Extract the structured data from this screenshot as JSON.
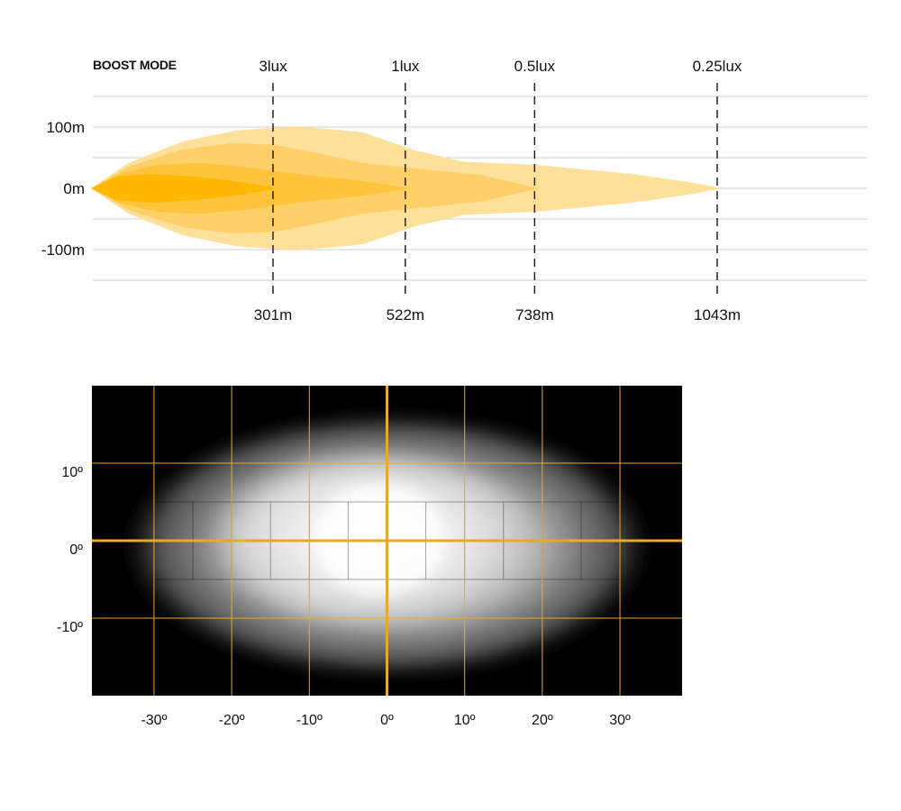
{
  "chart_data": [
    {
      "type": "area",
      "title": "BOOST MODE",
      "xlabel": "",
      "ylabel": "",
      "xlim": [
        0,
        1250
      ],
      "ylim": [
        -150,
        150
      ],
      "y_ticks": [
        "100m",
        "0m",
        "-100m"
      ],
      "y_tick_values": [
        100,
        0,
        -100
      ],
      "grid": true,
      "colors": [
        "#ffe09a",
        "#ffd068",
        "#ffc43c",
        "#ffb800"
      ],
      "series": [
        {
          "lux": "0.25lux",
          "distance_label": "1043m",
          "reach": 1043,
          "outline": [
            [
              0,
              0
            ],
            [
              60,
              40
            ],
            [
              150,
              75
            ],
            [
              240,
              93
            ],
            [
              340,
              100
            ],
            [
              450,
              90
            ],
            [
              540,
              60
            ],
            [
              620,
              42
            ],
            [
              738,
              37
            ],
            [
              900,
              22
            ],
            [
              1000,
              8
            ],
            [
              1043,
              0
            ]
          ]
        },
        {
          "lux": "0.5lux",
          "distance_label": "738m",
          "reach": 738,
          "outline": [
            [
              0,
              0
            ],
            [
              60,
              34
            ],
            [
              150,
              62
            ],
            [
              230,
              72
            ],
            [
              300,
              70
            ],
            [
              380,
              55
            ],
            [
              450,
              40
            ],
            [
              540,
              31
            ],
            [
              650,
              20
            ],
            [
              738,
              0
            ]
          ]
        },
        {
          "lux": "1lux",
          "distance_label": "522m",
          "reach": 522,
          "outline": [
            [
              0,
              0
            ],
            [
              50,
              24
            ],
            [
              110,
              37
            ],
            [
              180,
              40
            ],
            [
              260,
              33
            ],
            [
              340,
              22
            ],
            [
              440,
              12
            ],
            [
              522,
              0
            ]
          ]
        },
        {
          "lux": "3lux",
          "distance_label": "301m",
          "reach": 301,
          "outline": [
            [
              0,
              0
            ],
            [
              40,
              18
            ],
            [
              100,
              22
            ],
            [
              170,
              18
            ],
            [
              240,
              10
            ],
            [
              301,
              0
            ]
          ]
        }
      ]
    },
    {
      "type": "heatmap",
      "x_ticks": [
        "-30º",
        "-20º",
        "-10º",
        "0º",
        "10º",
        "20º",
        "30º"
      ],
      "x_tick_values": [
        -30,
        -20,
        -10,
        0,
        10,
        20,
        30
      ],
      "y_ticks": [
        "10º",
        "0º",
        "-10º"
      ],
      "y_tick_values": [
        10,
        0,
        -10
      ],
      "xlim": [
        -38,
        38
      ],
      "ylim": [
        -20,
        20
      ],
      "grid": true,
      "grid_color": "#e8a928",
      "beam_half_width_deg": 34,
      "beam_half_height_deg": 13
    }
  ]
}
